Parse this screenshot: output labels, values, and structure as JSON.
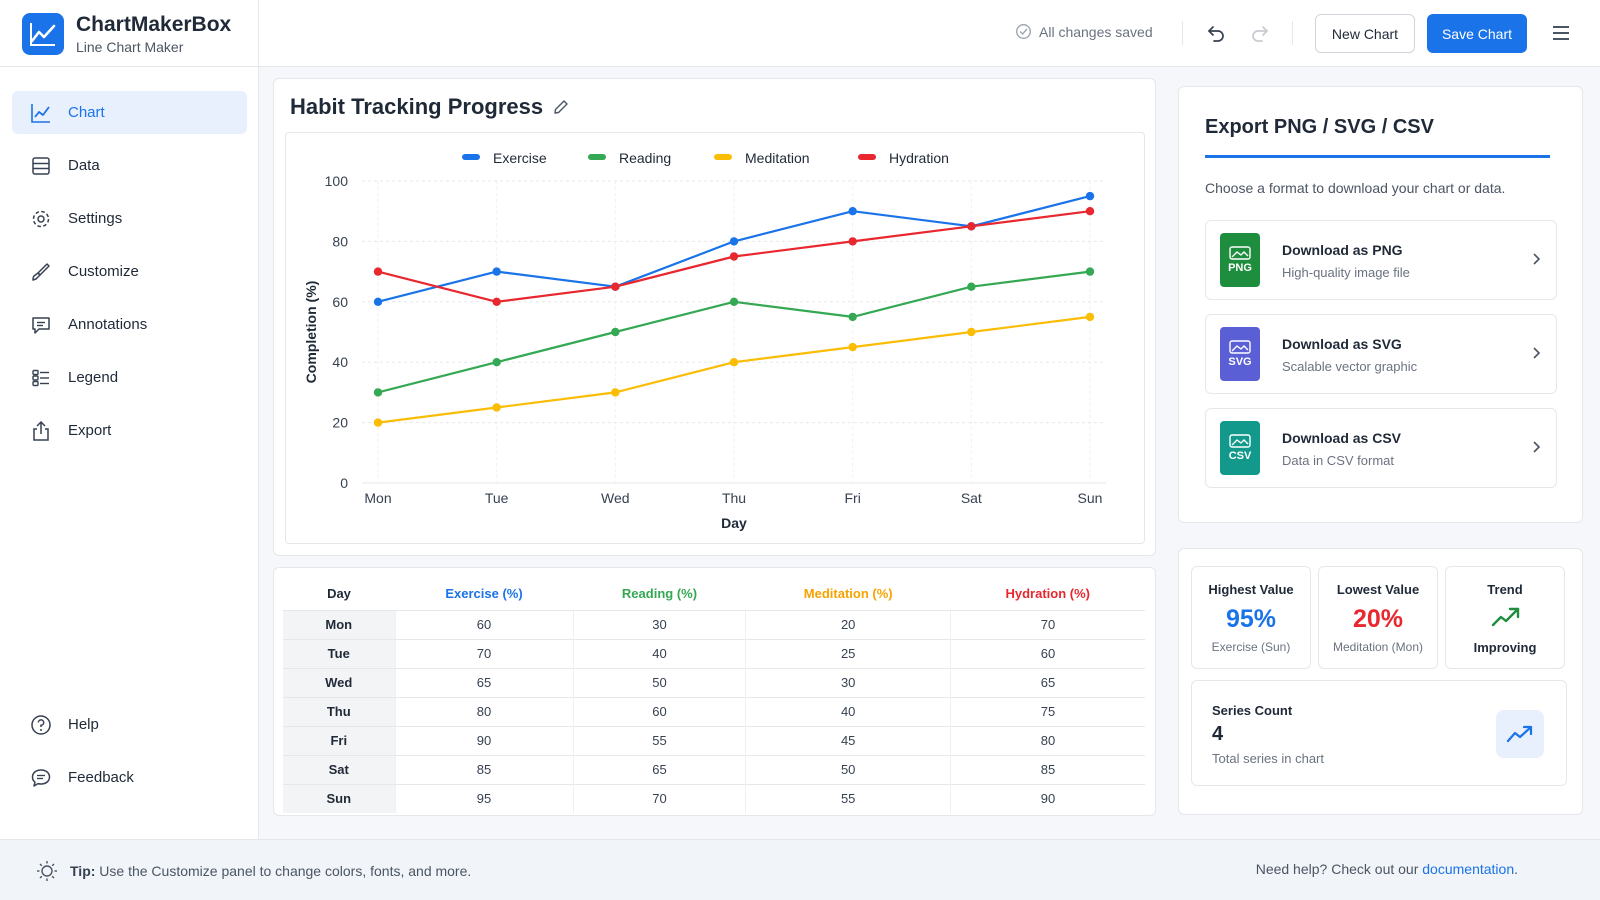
{
  "app": {
    "name": "ChartMakerBox",
    "subtitle": "Line Chart Maker"
  },
  "header": {
    "save_status": "All changes saved",
    "new_chart_label": "New Chart",
    "save_chart_label": "Save Chart"
  },
  "sidebar": {
    "items": [
      {
        "label": "Chart",
        "icon": "line-chart-icon",
        "active": true
      },
      {
        "label": "Data",
        "icon": "table-icon"
      },
      {
        "label": "Settings",
        "icon": "gear-icon"
      },
      {
        "label": "Customize",
        "icon": "brush-icon"
      },
      {
        "label": "Annotations",
        "icon": "comment-icon"
      },
      {
        "label": "Legend",
        "icon": "legend-icon"
      },
      {
        "label": "Export",
        "icon": "share-icon"
      }
    ],
    "bottom_items": [
      {
        "label": "Help",
        "icon": "help-icon"
      },
      {
        "label": "Feedback",
        "icon": "chat-icon"
      }
    ]
  },
  "chart_panel": {
    "title": "Habit Tracking Progress"
  },
  "chart_data": {
    "type": "line",
    "title": "Habit Tracking Progress",
    "xlabel": "Day",
    "ylabel": "Completion (%)",
    "ylim": [
      0,
      100
    ],
    "yticks": [
      0,
      20,
      40,
      60,
      80,
      100
    ],
    "categories": [
      "Mon",
      "Tue",
      "Wed",
      "Thu",
      "Fri",
      "Sat",
      "Sun"
    ],
    "legend_position": "top",
    "grid": true,
    "series": [
      {
        "name": "Exercise",
        "color": "#1a73e8",
        "values": [
          60,
          70,
          65,
          80,
          90,
          85,
          95
        ]
      },
      {
        "name": "Reading",
        "color": "#34a853",
        "values": [
          30,
          40,
          50,
          60,
          55,
          65,
          70
        ]
      },
      {
        "name": "Meditation",
        "color": "#fbbc04",
        "values": [
          20,
          25,
          30,
          40,
          45,
          50,
          55
        ]
      },
      {
        "name": "Hydration",
        "color": "#e8272f",
        "values": [
          70,
          60,
          65,
          75,
          80,
          85,
          90
        ]
      }
    ]
  },
  "table": {
    "headers": [
      "Day",
      "Exercise (%)",
      "Reading (%)",
      "Meditation (%)",
      "Hydration (%)"
    ],
    "header_colors": [
      "#1f2937",
      "#1a73e8",
      "#34a853",
      "#f5a300",
      "#e8272f"
    ],
    "rows": [
      [
        "Mon",
        "60",
        "30",
        "20",
        "70"
      ],
      [
        "Tue",
        "70",
        "40",
        "25",
        "60"
      ],
      [
        "Wed",
        "65",
        "50",
        "30",
        "65"
      ],
      [
        "Thu",
        "80",
        "60",
        "40",
        "75"
      ],
      [
        "Fri",
        "90",
        "55",
        "45",
        "80"
      ],
      [
        "Sat",
        "85",
        "65",
        "50",
        "85"
      ],
      [
        "Sun",
        "95",
        "70",
        "55",
        "90"
      ]
    ]
  },
  "export": {
    "title": "Export PNG / SVG / CSV",
    "description": "Choose a format to download your chart or data.",
    "items": [
      {
        "title": "Download as PNG",
        "subtitle": "High-quality image file",
        "badge": "PNG",
        "color": "#1e8e3e"
      },
      {
        "title": "Download as SVG",
        "subtitle": "Scalable vector graphic",
        "badge": "SVG",
        "color": "#5b5fd6"
      },
      {
        "title": "Download as CSV",
        "subtitle": "Data in CSV format",
        "badge": "CSV",
        "color": "#12998b"
      }
    ]
  },
  "stats": {
    "highest": {
      "label": "Highest Value",
      "value": "95%",
      "sub": "Exercise (Sun)",
      "color": "#1a73e8"
    },
    "lowest": {
      "label": "Lowest Value",
      "value": "20%",
      "sub": "Meditation (Mon)",
      "color": "#e8272f"
    },
    "trend": {
      "label": "Trend",
      "value": "Improving",
      "color": "#1e8e3e"
    },
    "series_count": {
      "label": "Series Count",
      "value": "4",
      "sub": "Total series in chart"
    }
  },
  "footer": {
    "tip_label": "Tip:",
    "tip_text": "Use the Customize panel to change colors, fonts, and more.",
    "help_text": "Need help? Check out our",
    "help_link": "documentation",
    "help_end": "."
  }
}
